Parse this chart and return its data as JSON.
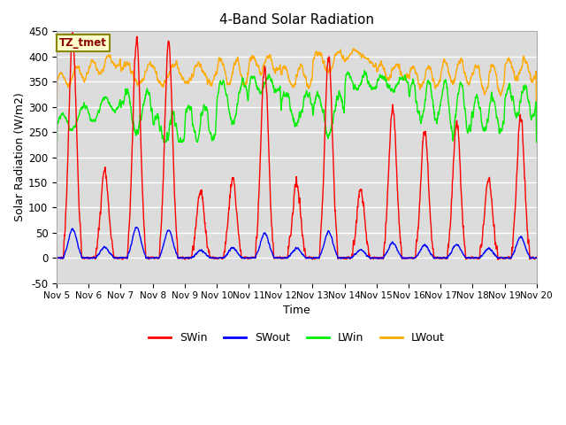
{
  "title": "4-Band Solar Radiation",
  "xlabel": "Time",
  "ylabel": "Solar Radiation (W/m2)",
  "annotation": "TZ_tmet",
  "ylim": [
    -50,
    450
  ],
  "xlim": [
    0,
    15
  ],
  "bg_color": "#dcdcdc",
  "lines": {
    "SWin": {
      "color": "#ff0000",
      "lw": 1.0
    },
    "SWout": {
      "color": "#0000ff",
      "lw": 1.0
    },
    "LWin": {
      "color": "#00ee00",
      "lw": 1.0
    },
    "LWout": {
      "color": "#ffaa00",
      "lw": 1.0
    }
  },
  "xtick_labels": [
    "Nov 5",
    "Nov 6",
    "Nov 7",
    "Nov 8",
    "Nov 9",
    "Nov 10",
    "Nov 11",
    "Nov 12",
    "Nov 13",
    "Nov 14",
    "Nov 15",
    "Nov 16",
    "Nov 17",
    "Nov 18",
    "Nov 19",
    "Nov 20"
  ],
  "ytick_values": [
    -50,
    0,
    50,
    100,
    150,
    200,
    250,
    300,
    350,
    400,
    450
  ],
  "n_days": 15,
  "pts_per_day": 144
}
